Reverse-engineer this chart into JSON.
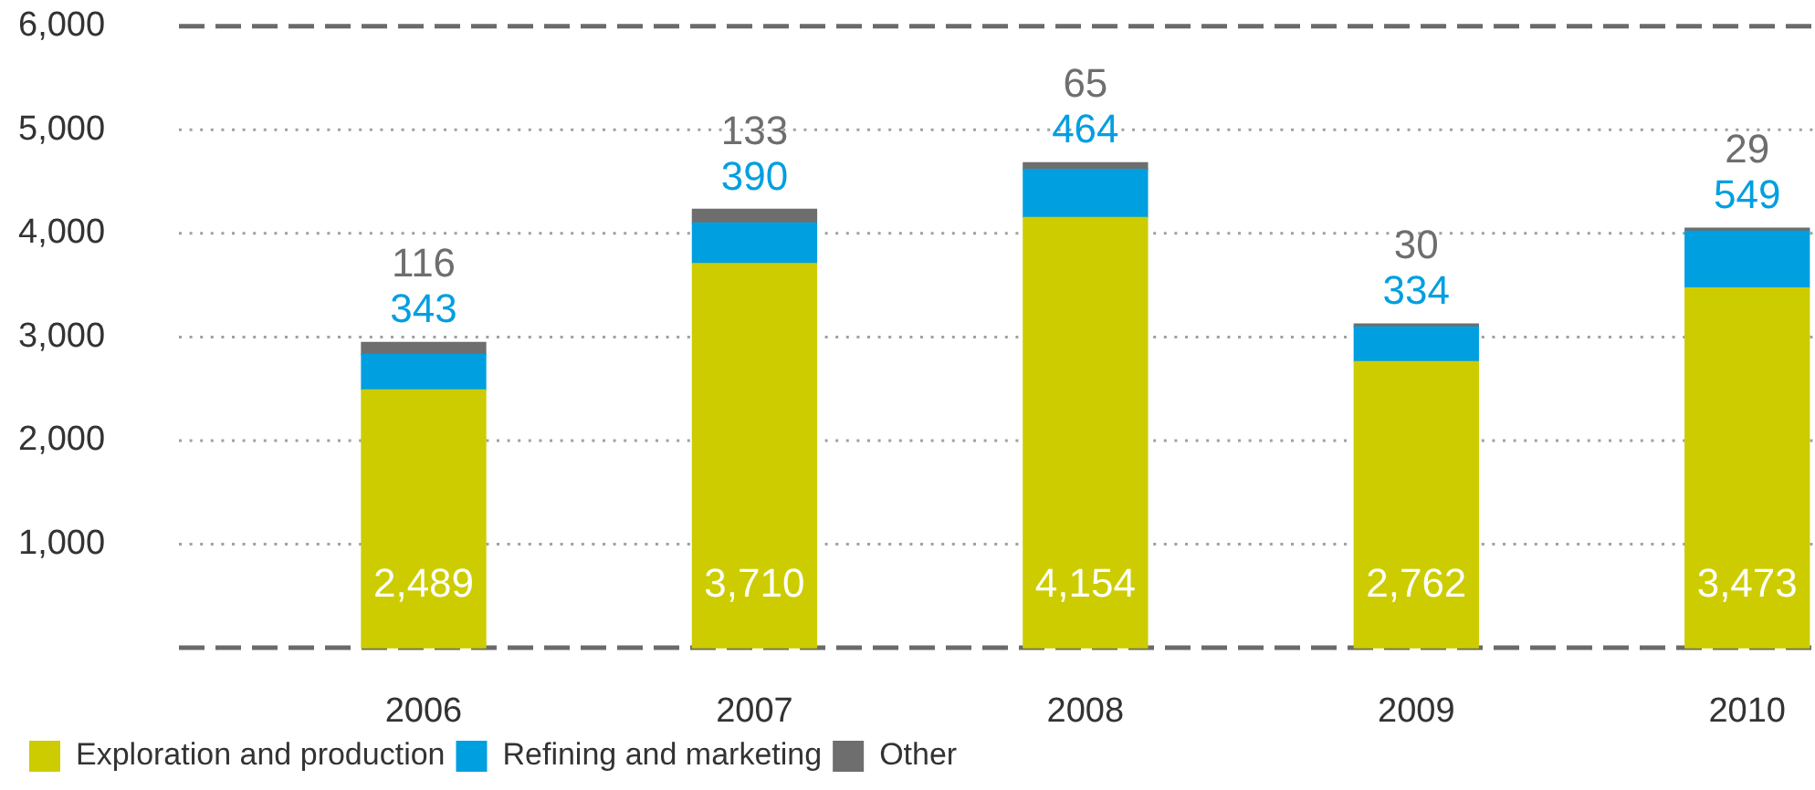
{
  "chart_data": {
    "type": "bar",
    "stacked": true,
    "categories": [
      "2006",
      "2007",
      "2008",
      "2009",
      "2010"
    ],
    "series": [
      {
        "name": "Exploration and production",
        "color": "#cccc00",
        "values": [
          2489,
          3710,
          4154,
          2762,
          3473
        ],
        "value_labels": [
          "2,489",
          "3,710",
          "4,154",
          "2,762",
          "3,473"
        ]
      },
      {
        "name": "Refining and marketing",
        "color": "#009fe0",
        "values": [
          343,
          390,
          464,
          334,
          549
        ],
        "value_labels": [
          "343",
          "390",
          "464",
          "334",
          "549"
        ]
      },
      {
        "name": "Other",
        "color": "#6e6e6e",
        "values": [
          116,
          133,
          65,
          30,
          29
        ],
        "value_labels": [
          "116",
          "133",
          "65",
          "30",
          "29"
        ]
      }
    ],
    "ylim": [
      0,
      6000
    ],
    "yticks": [
      {
        "value": 0,
        "label": null
      },
      {
        "value": 1000,
        "label": "1,000"
      },
      {
        "value": 2000,
        "label": "2,000"
      },
      {
        "value": 3000,
        "label": "3,000"
      },
      {
        "value": 4000,
        "label": "4,000"
      },
      {
        "value": 5000,
        "label": "5,000"
      },
      {
        "value": 6000,
        "label": "6,000"
      }
    ],
    "grid": "y",
    "legend": "bottom left"
  }
}
